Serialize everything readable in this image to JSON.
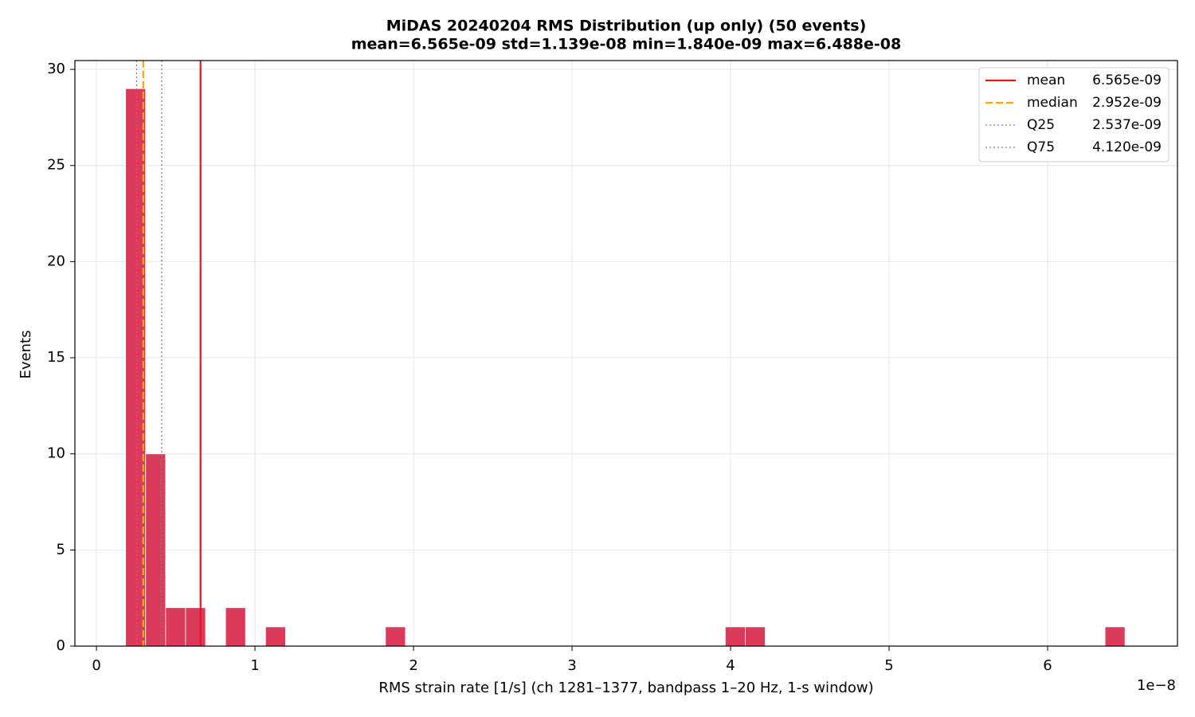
{
  "chart_data": {
    "type": "histogram",
    "title": "MiDAS 20240204  RMS Distribution  (up only)  (50 events)",
    "subtitle": "mean=6.565e-09  std=1.139e-08  min=1.840e-09  max=6.488e-08",
    "x_label": "RMS strain rate [1/s]  (ch 1281–1377, bandpass 1–20 Hz, 1-s window)",
    "y_label": "Events",
    "x_offset_label": "1e−8",
    "color": "#dc3a5a",
    "bins": [
      0.184,
      0.31008,
      0.43616,
      0.56224,
      0.68832,
      0.8144,
      0.94048,
      1.06656,
      1.19264,
      1.31872,
      1.4448,
      1.57088,
      1.69696,
      1.82304,
      1.94912,
      2.0752,
      2.20128,
      2.32736,
      2.45344,
      2.57952,
      2.7056,
      2.83168,
      2.95776,
      3.08384,
      3.20992,
      3.336,
      3.46208,
      3.58816,
      3.71424,
      3.84032,
      3.9664,
      4.09248,
      4.21856,
      4.34464,
      4.47072,
      4.5968,
      4.72288,
      4.84896,
      4.97504,
      5.10112,
      5.2272,
      5.35328,
      5.47936,
      5.60544,
      5.73152,
      5.8576,
      5.98368,
      6.10976,
      6.23584,
      6.36192,
      6.488
    ],
    "values": [
      29,
      10,
      2,
      2,
      0,
      2,
      0,
      1,
      0,
      0,
      0,
      0,
      0,
      1,
      0,
      0,
      0,
      0,
      0,
      0,
      0,
      0,
      0,
      0,
      0,
      0,
      0,
      0,
      0,
      0,
      1,
      1,
      0,
      0,
      0,
      0,
      0,
      0,
      0,
      0,
      0,
      0,
      0,
      0,
      0,
      0,
      0,
      0,
      0,
      1
    ],
    "reference_lines": [
      {
        "name": "mean",
        "value": 0.6565,
        "label": "6.565e-09",
        "color": "#e8141c",
        "style": "solid"
      },
      {
        "name": "median",
        "value": 0.2952,
        "label": "2.952e-09",
        "color": "#ffa500",
        "style": "dashed"
      },
      {
        "name": "Q25",
        "value": 0.2537,
        "label": "2.537e-09",
        "color": "#808080",
        "style": "dotted"
      },
      {
        "name": "Q75",
        "value": 0.412,
        "label": "4.120e-09",
        "color": "#808080",
        "style": "dotted"
      }
    ],
    "xlim": [
      -0.136,
      6.819
    ],
    "ylim": [
      0,
      30.46
    ],
    "xticks": [
      0,
      1,
      2,
      3,
      4,
      5,
      6
    ],
    "yticks": [
      0,
      5,
      10,
      15,
      20,
      25,
      30
    ],
    "grid": true,
    "legend_position": "upper right"
  }
}
